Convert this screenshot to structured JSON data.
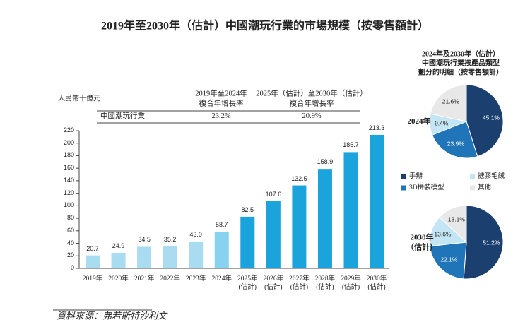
{
  "source": "資料來源：弗若斯特沙利文",
  "chart_data": [
    {
      "type": "bar",
      "title": "2019年至2030年（估計）中國潮玩行業的市場規模（按零售額計）",
      "y_label": "人民幣十億元",
      "categories": [
        "2019年",
        "2020年",
        "2021年",
        "2022年",
        "2023年",
        "2024年",
        "2025年\n(估計)",
        "2026年\n(估計)",
        "2027年\n(估計)",
        "2028年\n(估計)",
        "2029年\n(估計)",
        "2030年\n(估計)"
      ],
      "values": [
        20.7,
        24.9,
        34.5,
        35.2,
        43.0,
        58.7,
        82.5,
        107.6,
        132.5,
        158.9,
        185.7,
        213.3
      ],
      "value_labels": [
        "20.7",
        "24.9",
        "34.5",
        "35.2",
        "43.0",
        "58.7",
        "82.5",
        "107.6",
        "132.5",
        "158.9",
        "185.7",
        "213.3"
      ],
      "colors": [
        "#a9dcf1",
        "#a9dcf1",
        "#a9dcf1",
        "#a9dcf1",
        "#a9dcf1",
        "#86d2ef",
        "#1ba3dc",
        "#1ba3dc",
        "#1ba3dc",
        "#1ba3dc",
        "#1ba3dc",
        "#1ba3dc"
      ],
      "ylim": [
        0,
        220
      ],
      "yticks": [
        0,
        20,
        40,
        60,
        80,
        100,
        120,
        140,
        160,
        180,
        200,
        220
      ],
      "cagr_table": {
        "headers": [
          "2019年至2024年\n複合年增長率",
          "2025年（估計）至2030年（估計）\n複合年增長率"
        ],
        "row_label": "中國潮玩行業",
        "values": [
          "23.2%",
          "20.9%"
        ]
      }
    },
    {
      "type": "pie",
      "title": "2024年及2030年（估計）\n中國潮玩行業按產品類型\n劃分的明細（按零售額計）",
      "categories": [
        "手辦",
        "3D拼裝模型",
        "搪膠毛絨",
        "其他"
      ],
      "colors": [
        "#1b3f6e",
        "#1f75b8",
        "#c4e6f4",
        "#e8e8e8"
      ],
      "series": [
        {
          "name": "2024年",
          "values": [
            45.1,
            23.9,
            9.4,
            21.6
          ],
          "value_labels": [
            "45.1%",
            "23.9%",
            "9.4%",
            "21.6%"
          ]
        },
        {
          "name": "2030年\n（估計）",
          "values": [
            51.2,
            22.1,
            13.6,
            13.1
          ],
          "value_labels": [
            "51.2%",
            "22.1%",
            "13.6%",
            "13.1%"
          ]
        }
      ]
    }
  ]
}
